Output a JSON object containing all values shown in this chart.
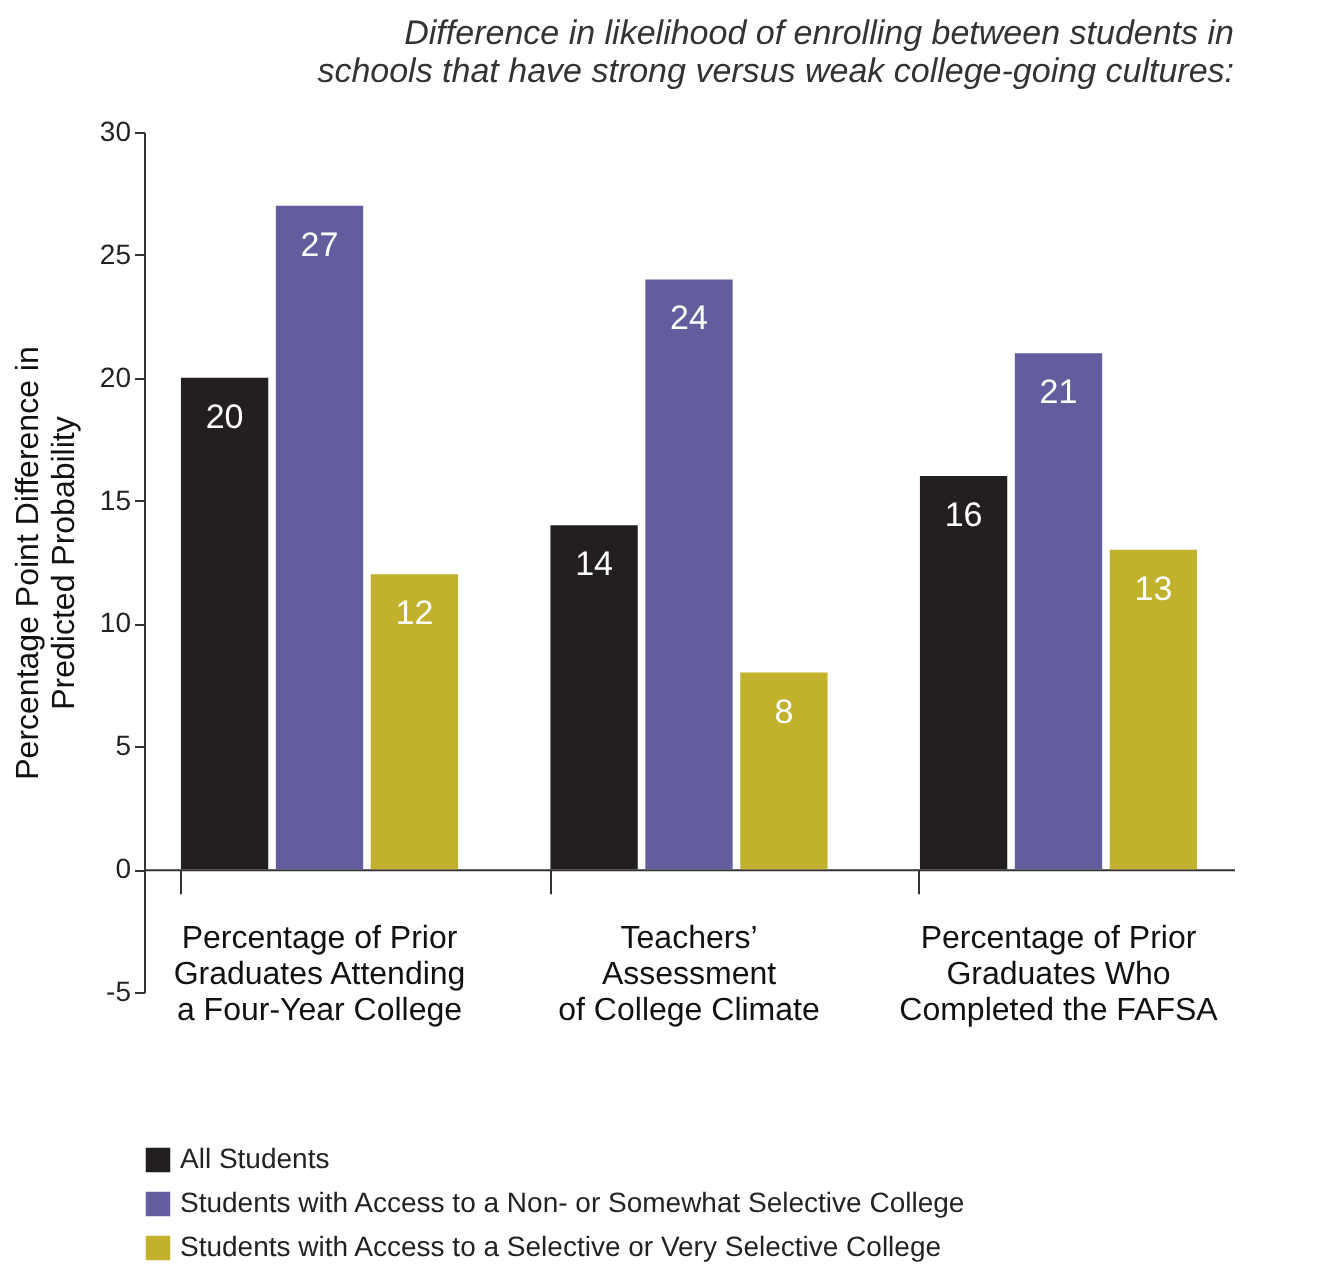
{
  "chart_data": {
    "type": "bar",
    "title": "Difference in likelihood of enrolling between students in\nschools that have strong versus weak college-going cultures:",
    "ylabel": "Percentage Point Difference in\nPredicted Probability",
    "categories": [
      "Percentage of Prior\nGraduates Attending\na Four-Year College",
      "Teachers’\nAssessment\nof College Climate",
      "Percentage of Prior\nGraduates Who\nCompleted the FAFSA"
    ],
    "series": [
      {
        "name": "All Students",
        "color": "#231f20",
        "values": [
          20,
          14,
          16
        ]
      },
      {
        "name": "Students with Access to a Non- or Somewhat Selective College",
        "color": "#625d9c",
        "values": [
          27,
          24,
          21
        ]
      },
      {
        "name": "Students with Access to a Selective or Very Selective College",
        "color": "#c2b12c",
        "values": [
          12,
          8,
          13
        ]
      }
    ],
    "ylim": [
      -5,
      30
    ],
    "yticks": [
      -5,
      0,
      5,
      10,
      15,
      20,
      25,
      30
    ],
    "grid": false,
    "legend": "bottom",
    "data_labels": true
  }
}
